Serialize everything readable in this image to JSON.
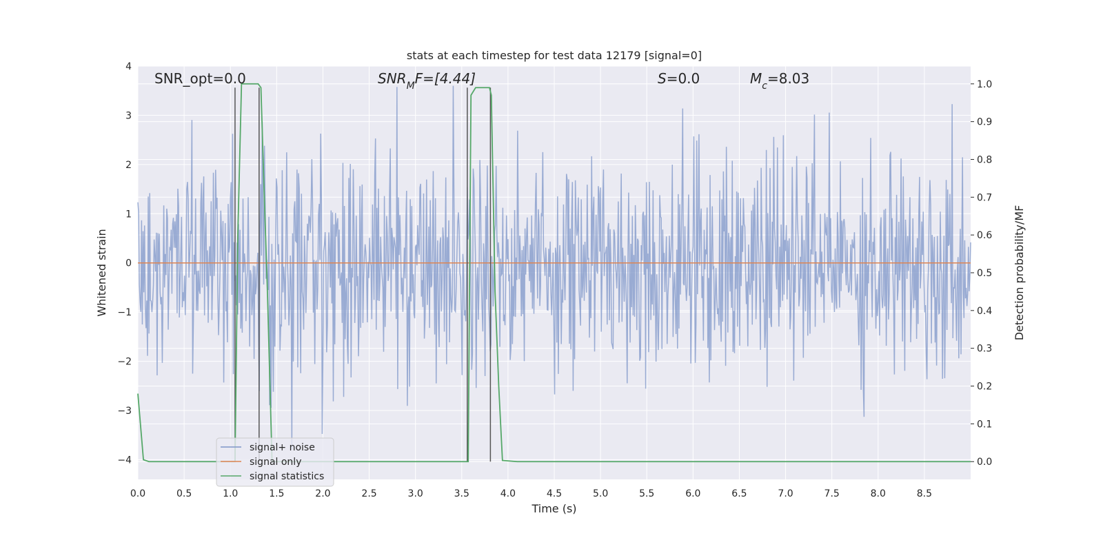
{
  "chart_data": {
    "type": "line",
    "title": "stats at each timestep for test data 12179 [signal=0]",
    "xlabel": "Time (s)",
    "ylabel": "Whitened strain",
    "ylabel_right": "Detection probability/MF",
    "xlim": [
      0.0,
      9.0
    ],
    "ylim": [
      -4.4,
      4.0
    ],
    "ylim_right": [
      -0.047,
      1.047
    ],
    "x_ticks": [
      0.0,
      0.5,
      1.0,
      1.5,
      2.0,
      2.5,
      3.0,
      3.5,
      4.0,
      4.5,
      5.0,
      5.5,
      6.0,
      6.5,
      7.0,
      7.5,
      8.0,
      8.5
    ],
    "x_tick_labels": [
      "0.0",
      "0.5",
      "1.0",
      "1.5",
      "2.0",
      "2.5",
      "3.0",
      "3.5",
      "4.0",
      "4.5",
      "5.0",
      "5.5",
      "6.0",
      "6.5",
      "7.0",
      "7.5",
      "8.0",
      "8.5"
    ],
    "y_ticks": [
      4,
      3,
      2,
      1,
      0,
      -1,
      -2,
      -3,
      -4
    ],
    "y_tick_labels": [
      "4",
      "3",
      "2",
      "1",
      "0",
      "−1",
      "−2",
      "−3",
      "−4"
    ],
    "y_right_ticks": [
      1.0,
      0.9,
      0.8,
      0.7,
      0.6,
      0.5,
      0.4,
      0.3,
      0.2,
      0.1,
      0.0
    ],
    "y_right_tick_labels": [
      "1.0",
      "0.9",
      "0.8",
      "0.7",
      "0.6",
      "0.5",
      "0.4",
      "0.3",
      "0.2",
      "0.1",
      "0.0"
    ],
    "grid": true,
    "legend_position": "lower-left",
    "annotations": {
      "snr_opt": "SNR_opt=0.0",
      "snr_mf_base": "SNR",
      "snr_mf_sub": "M",
      "snr_mf_rest": "F=[4.44]",
      "s_sym": "S",
      "s_val": "=0.0",
      "mc_base": "M",
      "mc_sub": "c",
      "mc_val": "=8.03"
    },
    "series": [
      {
        "name": "signal+ noise",
        "axis": "left",
        "color": "#7d95c8",
        "dt": 0.008,
        "t_start": 0.0,
        "t_end": 9.0,
        "amp_typical": 1.5,
        "amp_peak_max": 3.6,
        "amp_trough_min": -4.0
      },
      {
        "name": "signal only",
        "axis": "left",
        "color": "#dd8452",
        "x": [
          0.0,
          9.0
        ],
        "y": [
          0.0,
          0.0
        ]
      },
      {
        "name": "signal statistics",
        "axis": "right",
        "color": "#55a868",
        "x": [
          0.0,
          0.06,
          0.12,
          1.0,
          1.05,
          1.08,
          1.12,
          1.2,
          1.3,
          1.33,
          1.36,
          1.4,
          1.45,
          3.55,
          3.57,
          3.6,
          3.65,
          3.8,
          3.82,
          3.86,
          3.9,
          3.94,
          4.1,
          9.0
        ],
        "y": [
          0.18,
          0.005,
          0.0,
          0.0,
          0.0,
          0.6,
          1.0,
          1.0,
          1.0,
          0.99,
          0.75,
          0.45,
          0.0,
          0.0,
          0.0,
          0.97,
          0.99,
          0.99,
          0.97,
          0.45,
          0.2,
          0.003,
          0.0,
          0.0
        ]
      }
    ],
    "vertical_markers": [
      {
        "x": 1.05,
        "y_top": 0.99,
        "color": "#555555"
      },
      {
        "x": 1.31,
        "y_top": 0.99,
        "color": "#555555"
      },
      {
        "x": 3.56,
        "y_top": 0.99,
        "color": "#555555"
      },
      {
        "x": 3.81,
        "y_top": 0.99,
        "color": "#555555"
      }
    ],
    "colors": {
      "plot_bg": "#eaeaf2",
      "grid": "#ffffff",
      "text": "#262626",
      "legend_bg": "#eaeaf2",
      "legend_border": "#cccccc"
    }
  }
}
